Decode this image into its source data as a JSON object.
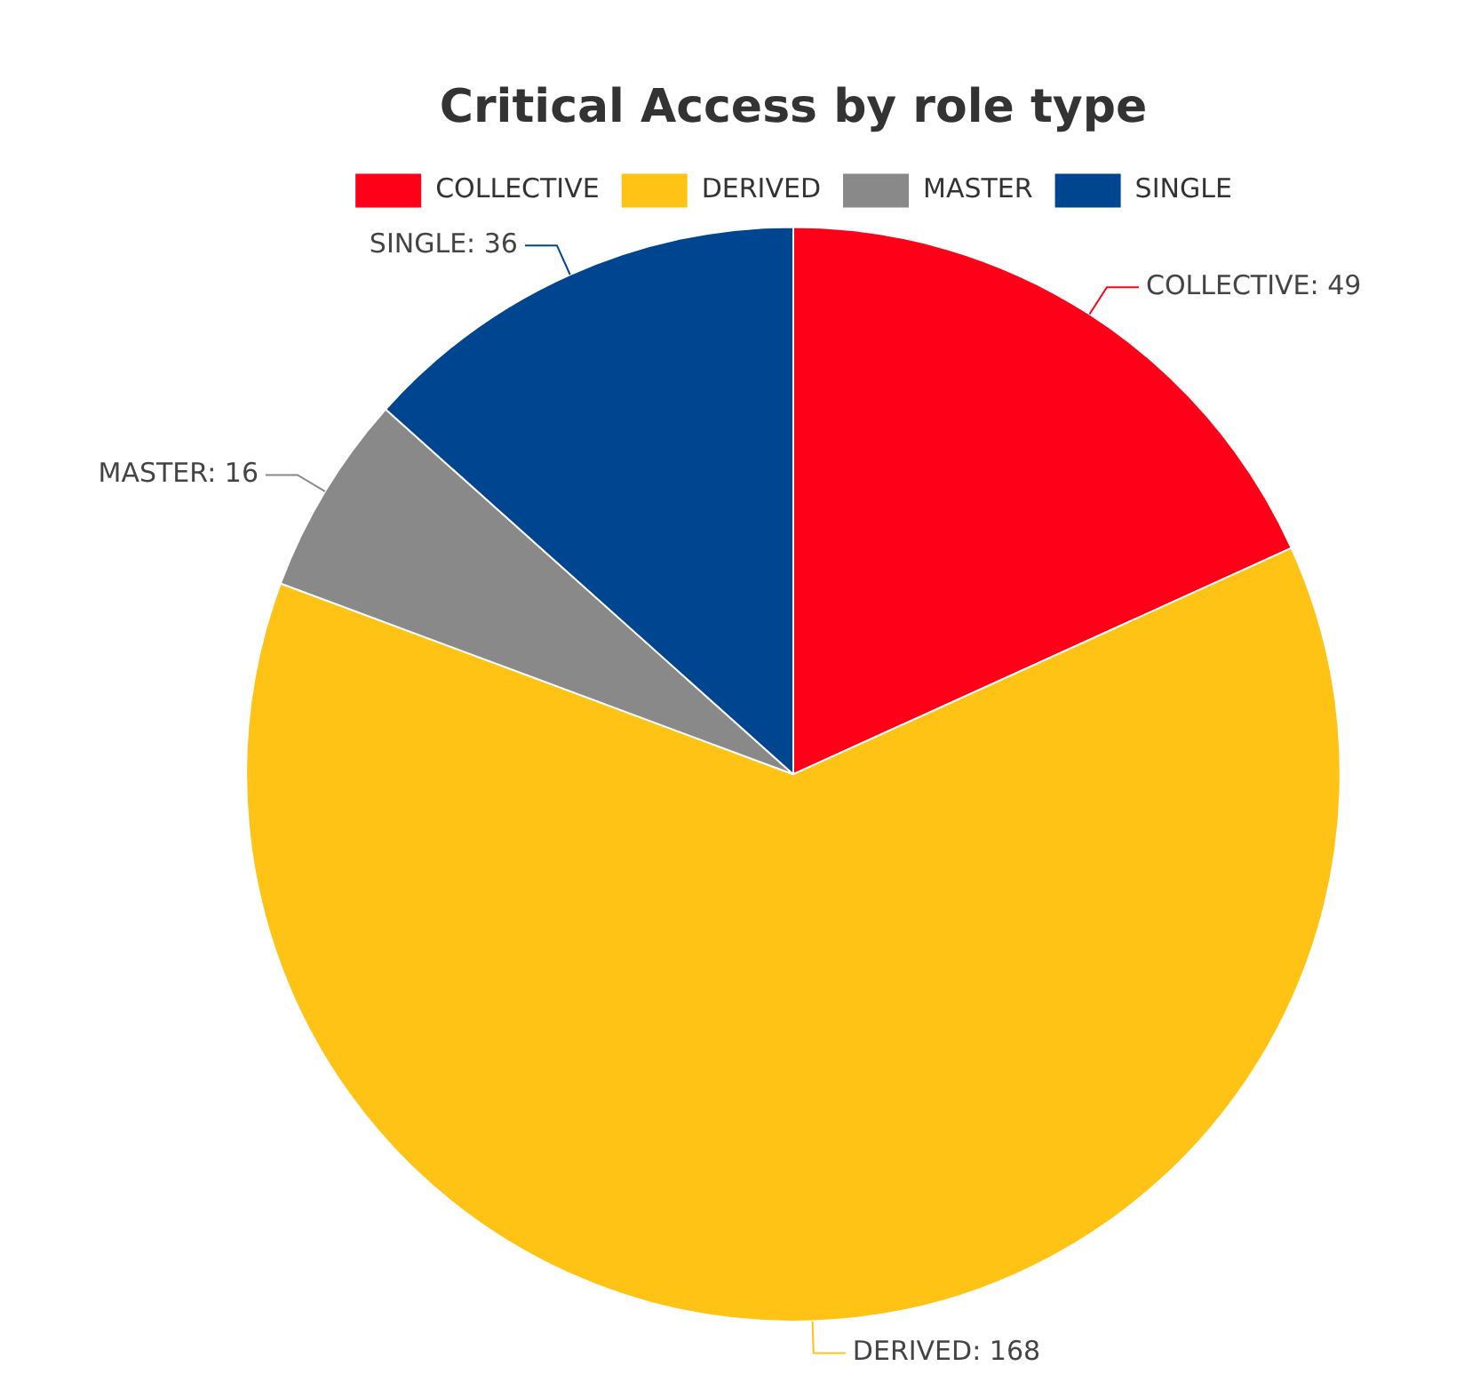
{
  "chart_data": {
    "type": "pie",
    "title": "Critical Access by role type",
    "categories": [
      "COLLECTIVE",
      "DERIVED",
      "MASTER",
      "SINGLE"
    ],
    "values": [
      49,
      168,
      16,
      36
    ],
    "colors": [
      "#ff0019",
      "#ffc315",
      "#898989",
      "#00458f"
    ],
    "value_labels": [
      "COLLECTIVE: 49",
      "DERIVED: 168",
      "MASTER: 16",
      "SINGLE: 36"
    ],
    "legend": "top"
  }
}
